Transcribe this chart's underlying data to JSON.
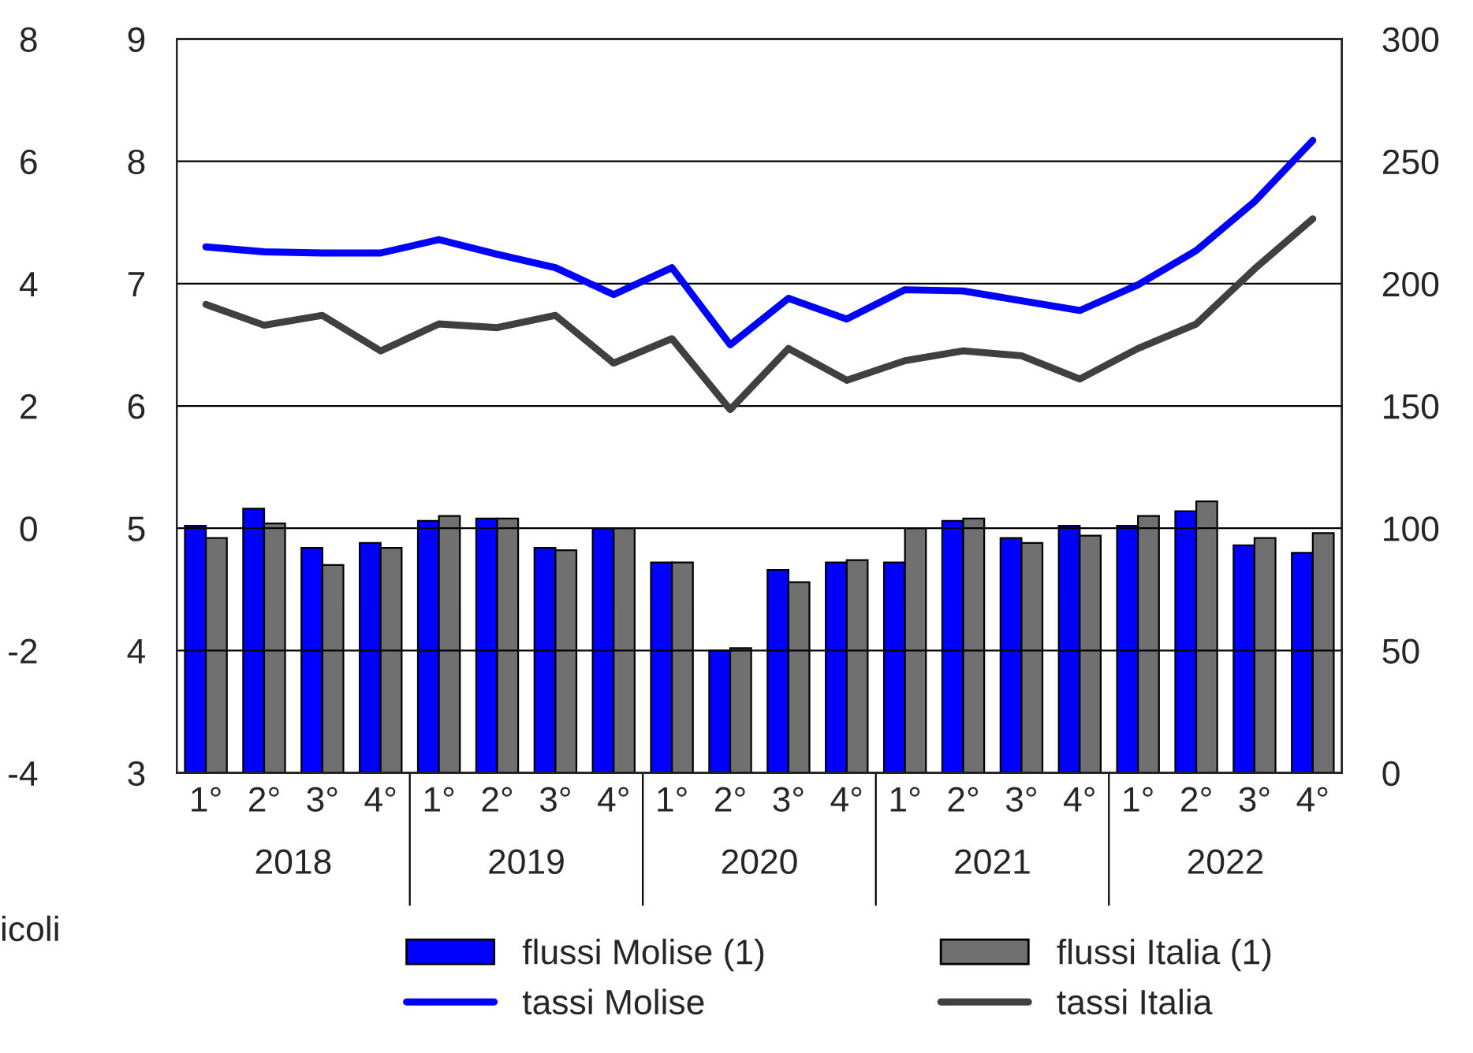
{
  "chart_data": {
    "type": "bar",
    "categories": [
      "1°",
      "2°",
      "3°",
      "4°",
      "1°",
      "2°",
      "3°",
      "4°",
      "1°",
      "2°",
      "3°",
      "4°",
      "1°",
      "2°",
      "3°",
      "4°",
      "1°",
      "2°",
      "3°",
      "4°"
    ],
    "series": [
      {
        "name": "flussi Molise (1)",
        "axis": "y2",
        "color": "#0000ff",
        "values": [
          101,
          108,
          92,
          94,
          103,
          104,
          92,
          100,
          86,
          50,
          83,
          86,
          86,
          103,
          96,
          101,
          101,
          107,
          93,
          90
        ]
      },
      {
        "name": "flussi Italia (1)",
        "axis": "y2",
        "color": "#707070",
        "values": [
          96,
          102,
          85,
          92,
          105,
          104,
          91,
          100,
          86,
          51,
          78,
          87,
          100,
          104,
          94,
          97,
          105,
          111,
          96,
          98
        ]
      },
      {
        "name": "tassi Molise",
        "type": "line",
        "color": "#0000ff",
        "values": [
          7.3,
          7.26,
          7.25,
          7.25,
          7.36,
          7.24,
          7.13,
          6.91,
          7.13,
          6.5,
          6.88,
          6.71,
          6.95,
          6.94,
          6.86,
          6.78,
          6.99,
          7.27,
          7.67,
          8.17
        ]
      },
      {
        "name": "tassi Italia",
        "type": "line",
        "color": "#404040",
        "values": [
          6.83,
          6.66,
          6.74,
          6.45,
          6.67,
          6.64,
          6.74,
          6.35,
          6.55,
          5.97,
          6.47,
          6.21,
          6.37,
          6.45,
          6.41,
          6.22,
          6.47,
          6.67,
          7.12,
          7.53
        ]
      }
    ],
    "ylim": [
      3,
      9
    ],
    "yticks": [
      3,
      4,
      5,
      6,
      7,
      8,
      9
    ],
    "y2lim": [
      0,
      300
    ],
    "y2ticks": [
      0,
      50,
      100,
      150,
      200,
      250,
      300
    ],
    "y3lim": [
      -4,
      8
    ],
    "y3ticks": [
      -4,
      -2,
      0,
      2,
      4,
      6,
      8
    ],
    "grid": "y",
    "legend": "bottom",
    "annotations": [
      "2018",
      "2019",
      "2020",
      "2021",
      "2022",
      "icoli"
    ]
  }
}
